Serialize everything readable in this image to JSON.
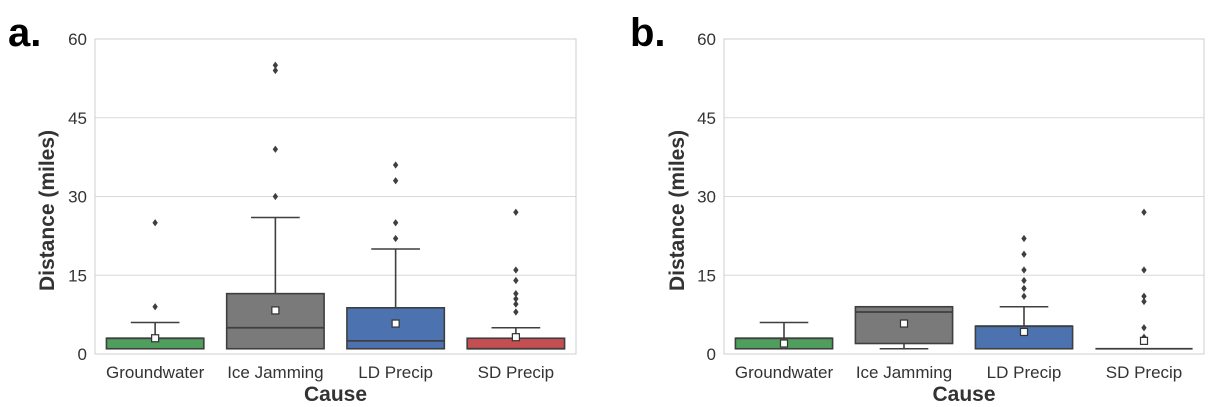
{
  "chart_data": [
    {
      "type": "box",
      "panel_label": "a.",
      "xlabel": "Cause",
      "ylabel": "Distance (miles)",
      "ylim": [
        0,
        60
      ],
      "yticks": [
        0,
        15,
        30,
        45,
        60
      ],
      "grid": "horizontal",
      "categories": [
        "Groundwater",
        "Ice Jamming",
        "LD Precip",
        "SD Precip"
      ],
      "colors": [
        "#4f9e5d",
        "#7a7a7a",
        "#4c72b0",
        "#c44e52"
      ],
      "boxes": [
        {
          "whisker_low": 1,
          "q1": 1,
          "median": 3,
          "q3": 3,
          "whisker_high": 6,
          "mean": 3,
          "outliers": [
            9,
            25
          ]
        },
        {
          "whisker_low": 1,
          "q1": 1,
          "median": 5,
          "q3": 11.5,
          "whisker_high": 26,
          "mean": 8.3,
          "outliers": [
            30,
            39,
            54,
            55
          ]
        },
        {
          "whisker_low": 1,
          "q1": 1,
          "median": 2.5,
          "q3": 8.8,
          "whisker_high": 20,
          "mean": 5.8,
          "outliers": [
            22,
            25,
            33,
            36
          ]
        },
        {
          "whisker_low": 1,
          "q1": 1,
          "median": 1,
          "q3": 3,
          "whisker_high": 5,
          "mean": 3.2,
          "outliers": [
            8,
            9.5,
            10.5,
            11.5,
            14,
            16,
            27
          ]
        }
      ]
    },
    {
      "type": "box",
      "panel_label": "b.",
      "xlabel": "Cause",
      "ylabel": "Distance (miles)",
      "ylim": [
        0,
        60
      ],
      "yticks": [
        0,
        15,
        30,
        45,
        60
      ],
      "grid": "horizontal",
      "categories": [
        "Groundwater",
        "Ice Jamming",
        "LD Precip",
        "SD Precip"
      ],
      "colors": [
        "#4f9e5d",
        "#7a7a7a",
        "#4c72b0",
        "#c44e52"
      ],
      "boxes": [
        {
          "whisker_low": 1,
          "q1": 1,
          "median": 3,
          "q3": 3,
          "whisker_high": 6,
          "mean": 2,
          "outliers": []
        },
        {
          "whisker_low": 1,
          "q1": 2,
          "median": 8,
          "q3": 9,
          "whisker_high": 9,
          "mean": 5.8,
          "outliers": []
        },
        {
          "whisker_low": 1,
          "q1": 1,
          "median": 5.3,
          "q3": 5.3,
          "whisker_high": 9,
          "mean": 4.2,
          "outliers": [
            11,
            12.5,
            14,
            16,
            19,
            22
          ]
        },
        {
          "whisker_low": 1,
          "q1": 1,
          "median": 1,
          "q3": 1,
          "whisker_high": 1,
          "mean": 2.5,
          "outliers": [
            3.2,
            5,
            10,
            11,
            16,
            27
          ]
        }
      ]
    }
  ]
}
